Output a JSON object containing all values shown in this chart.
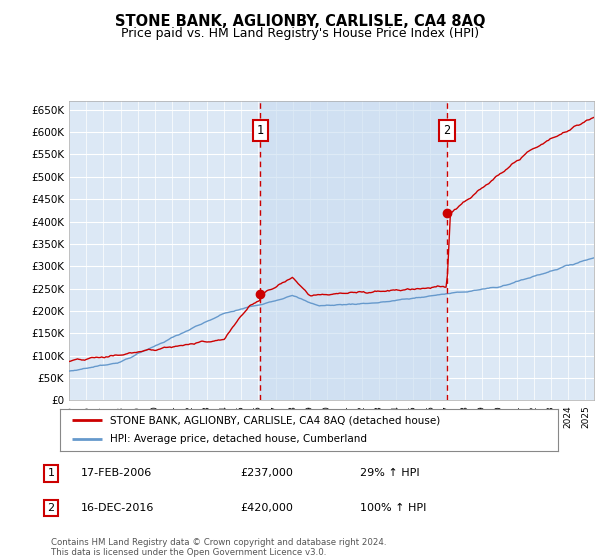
{
  "title": "STONE BANK, AGLIONBY, CARLISLE, CA4 8AQ",
  "subtitle": "Price paid vs. HM Land Registry's House Price Index (HPI)",
  "legend_line1": "STONE BANK, AGLIONBY, CARLISLE, CA4 8AQ (detached house)",
  "legend_line2": "HPI: Average price, detached house, Cumberland",
  "annotation1": {
    "label": "1",
    "date": "17-FEB-2006",
    "price": "£237,000",
    "pct": "29% ↑ HPI"
  },
  "annotation2": {
    "label": "2",
    "date": "16-DEC-2016",
    "price": "£420,000",
    "pct": "100% ↑ HPI"
  },
  "footnote": "Contains HM Land Registry data © Crown copyright and database right 2024.\nThis data is licensed under the Open Government Licence v3.0.",
  "red_color": "#cc0000",
  "blue_color": "#6699cc",
  "bg_plot": "#dce8f5",
  "shade_color": "#c8dcf0",
  "grid_color": "#ffffff",
  "annotation_color": "#cc0000",
  "ylim": [
    0,
    670000
  ],
  "yticks": [
    0,
    50000,
    100000,
    150000,
    200000,
    250000,
    300000,
    350000,
    400000,
    450000,
    500000,
    550000,
    600000,
    650000
  ],
  "ytick_labels": [
    "£0",
    "£50K",
    "£100K",
    "£150K",
    "£200K",
    "£250K",
    "£300K",
    "£350K",
    "£400K",
    "£450K",
    "£500K",
    "£550K",
    "£600K",
    "£650K"
  ],
  "sale1_x": 2006.12,
  "sale1_y": 237000,
  "sale2_x": 2016.96,
  "sale2_y": 420000,
  "xmin": 1995,
  "xmax": 2025.5
}
